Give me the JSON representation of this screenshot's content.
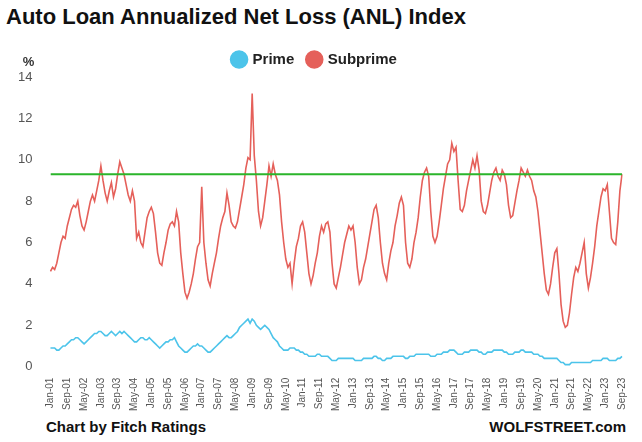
{
  "chart_data": {
    "type": "line",
    "title": "Auto Loan Annualized Net Loss (ANL) Index",
    "y_label": "%",
    "source": "Chart by Fitch Ratings",
    "credit": "WOLFSTREET.com",
    "legend": "top",
    "grid": false,
    "ylim": [
      0,
      14
    ],
    "yticks": [
      0,
      2,
      4,
      6,
      8,
      10,
      12,
      14
    ],
    "reference_line": {
      "value": 9.3,
      "color": "#2bb52b"
    },
    "categories": [
      "Jan-01",
      null,
      null,
      null,
      null,
      null,
      null,
      null,
      "Sep-01",
      null,
      null,
      null,
      null,
      null,
      null,
      null,
      "May-02",
      null,
      null,
      null,
      null,
      null,
      null,
      null,
      "Jan-03",
      null,
      null,
      null,
      null,
      null,
      null,
      null,
      "Sep-03",
      null,
      null,
      null,
      null,
      null,
      null,
      null,
      "May-04",
      null,
      null,
      null,
      null,
      null,
      null,
      null,
      "Jan-05",
      null,
      null,
      null,
      null,
      null,
      null,
      null,
      "Sep-05",
      null,
      null,
      null,
      null,
      null,
      null,
      null,
      "May-06",
      null,
      null,
      null,
      null,
      null,
      null,
      null,
      "Jan-07",
      null,
      null,
      null,
      null,
      null,
      null,
      null,
      "Sep-07",
      null,
      null,
      null,
      null,
      null,
      null,
      null,
      "May-08",
      null,
      null,
      null,
      null,
      null,
      null,
      null,
      "Jan-09",
      null,
      null,
      null,
      null,
      null,
      null,
      null,
      "Sep-09",
      null,
      null,
      null,
      null,
      null,
      null,
      null,
      "May-10",
      null,
      null,
      null,
      null,
      null,
      null,
      null,
      "Jan-11",
      null,
      null,
      null,
      null,
      null,
      null,
      null,
      "Sep-11",
      null,
      null,
      null,
      null,
      null,
      null,
      null,
      "May-12",
      null,
      null,
      null,
      null,
      null,
      null,
      null,
      "Jan-13",
      null,
      null,
      null,
      null,
      null,
      null,
      null,
      "Sep-13",
      null,
      null,
      null,
      null,
      null,
      null,
      null,
      "May-14",
      null,
      null,
      null,
      null,
      null,
      null,
      null,
      "Jan-15",
      null,
      null,
      null,
      null,
      null,
      null,
      null,
      "Sep-15",
      null,
      null,
      null,
      null,
      null,
      null,
      null,
      "May-16",
      null,
      null,
      null,
      null,
      null,
      null,
      null,
      "Jan-17",
      null,
      null,
      null,
      null,
      null,
      null,
      null,
      "Sep-17",
      null,
      null,
      null,
      null,
      null,
      null,
      null,
      "May-18",
      null,
      null,
      null,
      null,
      null,
      null,
      null,
      "Jan-19",
      null,
      null,
      null,
      null,
      null,
      null,
      null,
      "Sep-19",
      null,
      null,
      null,
      null,
      null,
      null,
      null,
      "May-20",
      null,
      null,
      null,
      null,
      null,
      null,
      null,
      "Jan-21",
      null,
      null,
      null,
      null,
      null,
      null,
      null,
      "Sep-21",
      null,
      null,
      null,
      null,
      null,
      null,
      null,
      "May-22",
      null,
      null,
      null,
      null,
      null,
      null,
      null,
      "Jan-23",
      null,
      null,
      null,
      null,
      null,
      null,
      null,
      "Sep-23"
    ],
    "series": [
      {
        "name": "Prime",
        "color": "#4cc4ea",
        "values": [
          0.9,
          0.9,
          0.9,
          0.8,
          0.8,
          0.9,
          1.0,
          1.0,
          1.1,
          1.2,
          1.3,
          1.3,
          1.4,
          1.4,
          1.3,
          1.2,
          1.1,
          1.2,
          1.3,
          1.4,
          1.5,
          1.6,
          1.6,
          1.7,
          1.7,
          1.6,
          1.5,
          1.5,
          1.6,
          1.7,
          1.6,
          1.5,
          1.6,
          1.7,
          1.6,
          1.7,
          1.6,
          1.5,
          1.4,
          1.3,
          1.2,
          1.2,
          1.3,
          1.4,
          1.4,
          1.3,
          1.3,
          1.4,
          1.3,
          1.2,
          1.1,
          1.0,
          0.9,
          1.0,
          1.1,
          1.2,
          1.2,
          1.3,
          1.3,
          1.4,
          1.2,
          1.0,
          0.9,
          0.8,
          0.7,
          0.7,
          0.8,
          0.9,
          1.0,
          1.0,
          1.1,
          1.0,
          1.0,
          0.9,
          0.8,
          0.7,
          0.7,
          0.8,
          0.9,
          1.0,
          1.1,
          1.2,
          1.3,
          1.4,
          1.5,
          1.4,
          1.4,
          1.5,
          1.6,
          1.7,
          1.9,
          2.0,
          2.1,
          2.2,
          2.3,
          2.1,
          2.3,
          2.2,
          2.0,
          1.9,
          1.8,
          1.9,
          2.0,
          1.9,
          1.8,
          1.6,
          1.4,
          1.3,
          1.2,
          1.0,
          0.9,
          0.8,
          0.8,
          0.8,
          0.9,
          0.9,
          0.9,
          0.8,
          0.8,
          0.7,
          0.7,
          0.6,
          0.6,
          0.5,
          0.5,
          0.5,
          0.5,
          0.6,
          0.6,
          0.5,
          0.5,
          0.5,
          0.5,
          0.4,
          0.3,
          0.3,
          0.3,
          0.4,
          0.4,
          0.4,
          0.4,
          0.4,
          0.4,
          0.4,
          0.4,
          0.3,
          0.3,
          0.3,
          0.3,
          0.4,
          0.4,
          0.4,
          0.4,
          0.4,
          0.5,
          0.5,
          0.4,
          0.4,
          0.3,
          0.3,
          0.4,
          0.4,
          0.4,
          0.5,
          0.5,
          0.5,
          0.5,
          0.5,
          0.5,
          0.4,
          0.4,
          0.5,
          0.5,
          0.5,
          0.6,
          0.6,
          0.6,
          0.6,
          0.6,
          0.6,
          0.6,
          0.5,
          0.5,
          0.5,
          0.6,
          0.6,
          0.6,
          0.7,
          0.7,
          0.7,
          0.8,
          0.8,
          0.8,
          0.7,
          0.6,
          0.6,
          0.6,
          0.7,
          0.7,
          0.7,
          0.8,
          0.8,
          0.8,
          0.8,
          0.7,
          0.7,
          0.6,
          0.6,
          0.7,
          0.7,
          0.7,
          0.8,
          0.8,
          0.8,
          0.8,
          0.8,
          0.7,
          0.7,
          0.6,
          0.6,
          0.6,
          0.7,
          0.7,
          0.7,
          0.8,
          0.8,
          0.7,
          0.7,
          0.7,
          0.7,
          0.6,
          0.6,
          0.6,
          0.5,
          0.5,
          0.4,
          0.4,
          0.4,
          0.4,
          0.4,
          0.4,
          0.4,
          0.3,
          0.2,
          0.2,
          0.1,
          0.1,
          0.1,
          0.2,
          0.2,
          0.2,
          0.2,
          0.2,
          0.2,
          0.2,
          0.2,
          0.2,
          0.2,
          0.3,
          0.3,
          0.3,
          0.3,
          0.3,
          0.4,
          0.4,
          0.4,
          0.3,
          0.3,
          0.3,
          0.3,
          0.4,
          0.4,
          0.5
        ]
      },
      {
        "name": "Subprime",
        "color": "#e5605a",
        "values": [
          4.6,
          4.8,
          4.7,
          5.0,
          5.5,
          6.0,
          6.3,
          6.2,
          6.8,
          7.2,
          7.6,
          7.8,
          7.7,
          8.0,
          7.3,
          6.8,
          6.6,
          7.0,
          7.5,
          8.0,
          8.3,
          8.0,
          8.5,
          9.0,
          9.7,
          9.0,
          8.4,
          8.0,
          8.5,
          8.9,
          8.2,
          8.6,
          9.3,
          9.9,
          9.6,
          9.3,
          8.8,
          8.3,
          8.0,
          8.5,
          8.0,
          6.2,
          6.5,
          6.0,
          5.8,
          6.5,
          7.2,
          7.5,
          7.7,
          7.4,
          6.5,
          5.5,
          5.0,
          4.9,
          5.5,
          6.0,
          6.6,
          6.9,
          7.0,
          6.8,
          7.5,
          7.0,
          5.5,
          4.5,
          3.6,
          3.3,
          3.6,
          4.0,
          4.5,
          5.2,
          5.8,
          6.0,
          8.7,
          6.0,
          5.0,
          4.2,
          3.9,
          4.5,
          5.0,
          5.5,
          6.2,
          6.8,
          7.2,
          7.5,
          8.4,
          7.8,
          7.0,
          6.8,
          6.7,
          7.0,
          7.6,
          8.2,
          8.8,
          9.6,
          10.1,
          10.0,
          13.2,
          10.2,
          9.0,
          7.5,
          6.8,
          7.2,
          8.0,
          8.8,
          9.7,
          9.2,
          9.8,
          9.3,
          9.0,
          8.3,
          7.0,
          6.0,
          5.2,
          4.8,
          5.0,
          4.0,
          5.0,
          5.8,
          6.2,
          6.8,
          7.0,
          6.5,
          5.5,
          4.5,
          4.0,
          4.4,
          5.0,
          5.5,
          6.3,
          6.8,
          6.5,
          6.9,
          7.0,
          6.5,
          5.0,
          4.0,
          3.8,
          4.3,
          4.8,
          5.4,
          6.0,
          6.4,
          6.8,
          6.6,
          6.8,
          6.0,
          4.8,
          4.0,
          4.2,
          4.8,
          5.2,
          5.8,
          6.4,
          7.0,
          7.6,
          7.8,
          7.2,
          6.0,
          5.0,
          4.5,
          4.2,
          5.0,
          5.6,
          6.0,
          6.8,
          7.3,
          7.9,
          8.2,
          7.8,
          6.0,
          5.0,
          4.8,
          5.2,
          6.0,
          6.5,
          7.2,
          8.2,
          9.0,
          9.4,
          9.6,
          9.2,
          7.5,
          6.3,
          6.0,
          6.3,
          7.0,
          7.8,
          8.6,
          9.2,
          9.8,
          10.0,
          10.8,
          10.4,
          10.6,
          9.0,
          7.6,
          7.5,
          7.8,
          8.5,
          9.0,
          9.5,
          10.0,
          9.6,
          10.2,
          9.5,
          8.0,
          7.5,
          7.4,
          7.8,
          8.4,
          9.0,
          9.4,
          9.6,
          9.2,
          9.0,
          9.5,
          9.3,
          8.8,
          7.8,
          7.2,
          7.3,
          7.9,
          8.5,
          9.0,
          9.6,
          9.4,
          9.2,
          9.5,
          9.2,
          9.0,
          8.5,
          8.2,
          7.5,
          6.5,
          5.5,
          4.5,
          3.7,
          3.5,
          4.0,
          4.8,
          5.5,
          5.7,
          4.5,
          3.0,
          2.2,
          1.9,
          2.0,
          2.6,
          3.5,
          4.3,
          4.8,
          4.6,
          5.0,
          5.5,
          6.0,
          4.5,
          3.8,
          4.3,
          5.0,
          5.8,
          6.8,
          7.5,
          8.2,
          8.6,
          8.5,
          8.8,
          7.5,
          6.2,
          6.0,
          5.9,
          7.0,
          8.5,
          9.3
        ]
      }
    ]
  }
}
